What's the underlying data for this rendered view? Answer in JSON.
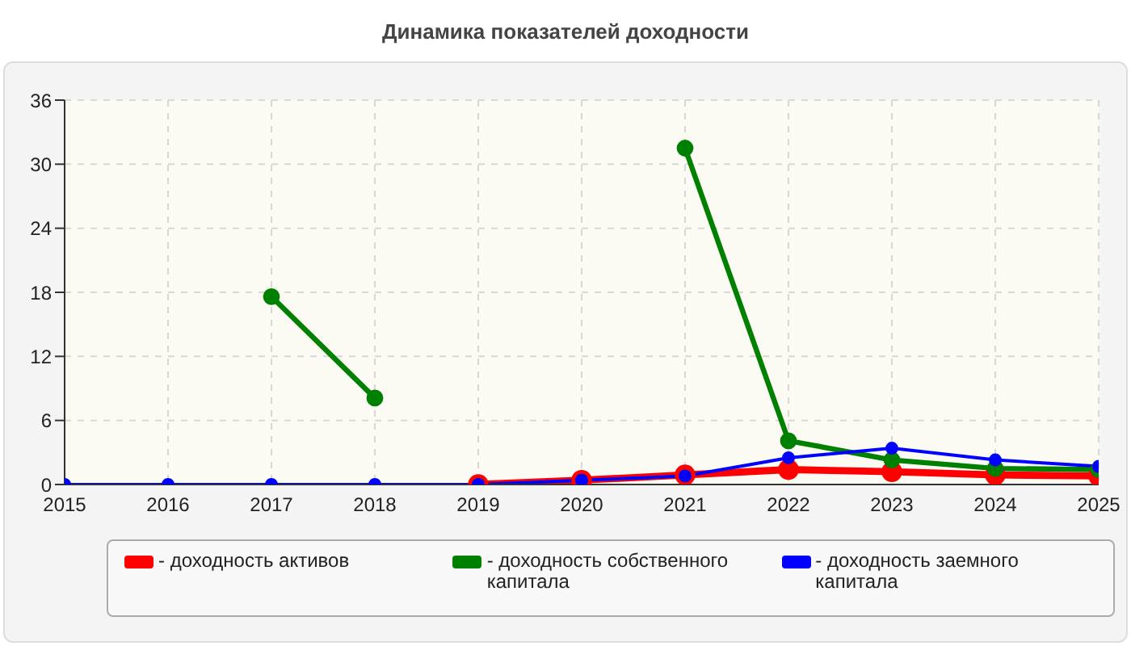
{
  "chart_data": {
    "type": "line",
    "title": "Динамика показателей доходности",
    "x": [
      2015,
      2016,
      2017,
      2018,
      2019,
      2020,
      2021,
      2022,
      2023,
      2024,
      2025
    ],
    "series": [
      {
        "name": "- доходность активов",
        "color": "#ff0000",
        "values": [
          null,
          null,
          null,
          null,
          0,
          0.4,
          0.9,
          1.4,
          1.2,
          0.9,
          0.8
        ]
      },
      {
        "name": "- доходность собственного капитала",
        "color": "#008000",
        "values": [
          null,
          null,
          17.6,
          8.1,
          null,
          null,
          31.5,
          4.1,
          2.3,
          1.5,
          1.4
        ]
      },
      {
        "name": "- доходность заемного капитала",
        "color": "#0000ff",
        "values": [
          0,
          0,
          0,
          0,
          0,
          0.4,
          0.8,
          2.5,
          3.4,
          2.3,
          1.7
        ]
      }
    ],
    "xlim": [
      2015,
      2025
    ],
    "xticks": [
      2015,
      2016,
      2017,
      2018,
      2019,
      2020,
      2021,
      2022,
      2023,
      2024,
      2025
    ],
    "ylim": [
      0,
      36
    ],
    "yticks": [
      0,
      6,
      12,
      18,
      24,
      30,
      36
    ],
    "grid": true,
    "legend": "bottom",
    "marker": "circle",
    "line_style": "solid"
  }
}
